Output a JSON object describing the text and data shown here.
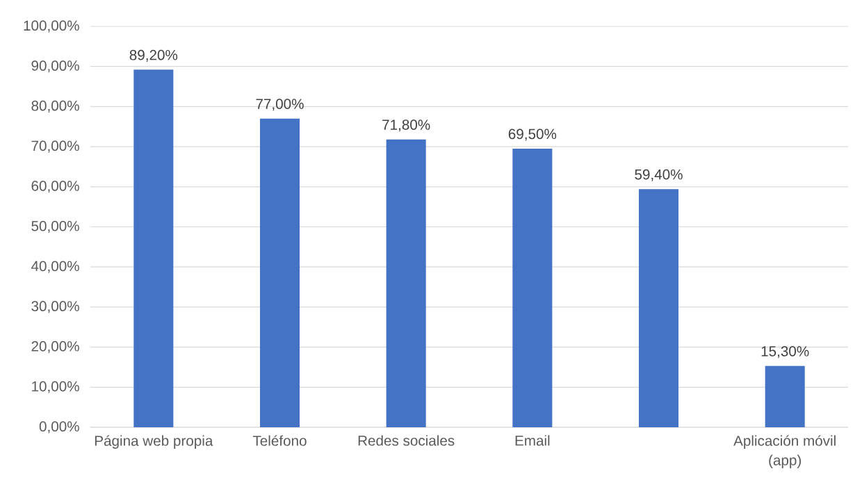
{
  "chart_data": {
    "type": "bar",
    "categories": [
      "Página web propia",
      "Teléfono",
      "Redes sociales",
      "Email",
      null,
      "Aplicación móvil (app)"
    ],
    "values": [
      89.2,
      77.0,
      71.8,
      69.5,
      59.4,
      15.3
    ],
    "color": "#4472c4",
    "value_labels": [
      "89,20%",
      "77,00%",
      "71,80%",
      "69,50%",
      "59,40%",
      "15,30%"
    ],
    "ylim": [
      0,
      100
    ],
    "yticks": [
      {
        "value": 0,
        "label": "0,00%"
      },
      {
        "value": 10,
        "label": "10,00%"
      },
      {
        "value": 20,
        "label": "20,00%"
      },
      {
        "value": 30,
        "label": "30,00%"
      },
      {
        "value": 40,
        "label": "40,00%"
      },
      {
        "value": 50,
        "label": "50,00%"
      },
      {
        "value": 60,
        "label": "60,00%"
      },
      {
        "value": 70,
        "label": "70,00%"
      },
      {
        "value": 80,
        "label": "80,00%"
      },
      {
        "value": 90,
        "label": "90,00%"
      },
      {
        "value": 100,
        "label": "100,00%"
      }
    ],
    "grid": "y"
  }
}
